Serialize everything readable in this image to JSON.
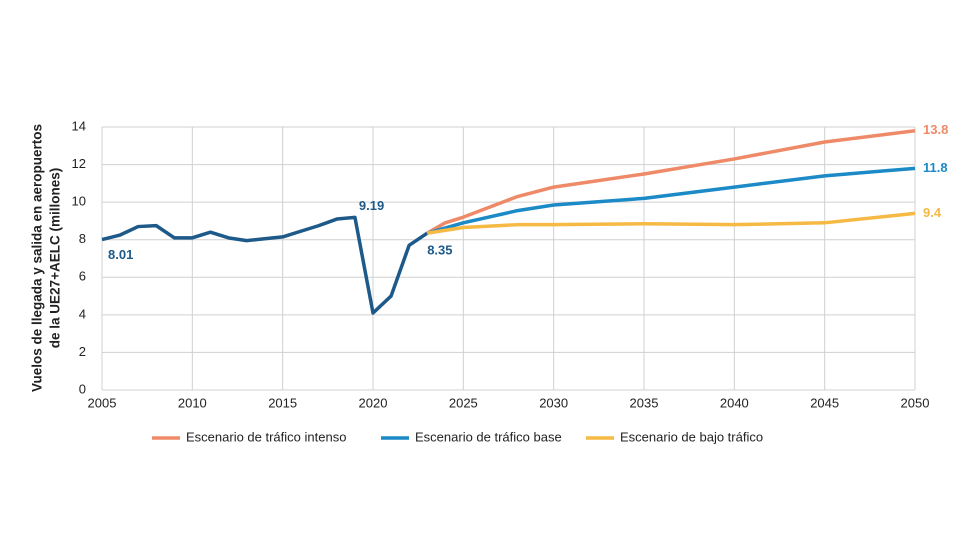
{
  "chart_data": {
    "type": "line",
    "ylabel": [
      "Vuelos de llegada y salida en aeropuertos",
      "de la UE27+AELC (millones)"
    ],
    "xlim": [
      2005,
      2050
    ],
    "xticks": [
      2005,
      2010,
      2015,
      2020,
      2025,
      2030,
      2035,
      2040,
      2045,
      2050
    ],
    "ylim": [
      0,
      14
    ],
    "yticks": [
      0,
      2,
      4,
      6,
      8,
      10,
      12,
      14
    ],
    "grid": true,
    "legend": "bottom",
    "series": [
      {
        "color": "#1d5a8a",
        "x": [
          2005,
          2006,
          2007,
          2008,
          2009,
          2010,
          2011,
          2012,
          2013,
          2014,
          2015,
          2016,
          2017,
          2018,
          2019,
          2020,
          2021,
          2022,
          2023
        ],
        "values": [
          8.01,
          8.25,
          8.7,
          8.75,
          8.1,
          8.1,
          8.4,
          8.1,
          7.95,
          8.05,
          8.15,
          8.45,
          8.75,
          9.1,
          9.19,
          4.1,
          5.0,
          7.7,
          8.35
        ],
        "value_labels": [
          "8.01",
          null,
          null,
          null,
          null,
          null,
          null,
          null,
          null,
          null,
          null,
          null,
          null,
          null,
          "9.19",
          null,
          null,
          null,
          "8.35"
        ]
      },
      {
        "name": "Escenario de tráfico intenso",
        "color": "#ee8a68",
        "x": [
          2023,
          2024,
          2025,
          2028,
          2030,
          2035,
          2040,
          2045,
          2050
        ],
        "values": [
          8.35,
          8.9,
          9.2,
          10.3,
          10.8,
          11.5,
          12.3,
          13.2,
          13.8
        ],
        "value_labels": [
          null,
          null,
          null,
          null,
          null,
          null,
          null,
          null,
          "13.8"
        ]
      },
      {
        "name": "Escenario de tráfico base",
        "color": "#1b8ac6",
        "x": [
          2023,
          2025,
          2028,
          2030,
          2035,
          2040,
          2045,
          2050
        ],
        "values": [
          8.35,
          8.9,
          9.55,
          9.85,
          10.2,
          10.8,
          11.4,
          11.8
        ],
        "value_labels": [
          null,
          null,
          null,
          null,
          null,
          null,
          null,
          "11.8"
        ]
      },
      {
        "name": "Escenario de bajo tráfico",
        "color": "#f5b944",
        "x": [
          2023,
          2025,
          2028,
          2030,
          2035,
          2040,
          2045,
          2050
        ],
        "values": [
          8.35,
          8.65,
          8.8,
          8.8,
          8.85,
          8.8,
          8.9,
          9.4
        ],
        "value_labels": [
          null,
          null,
          null,
          null,
          null,
          null,
          null,
          "9.4"
        ]
      }
    ]
  }
}
